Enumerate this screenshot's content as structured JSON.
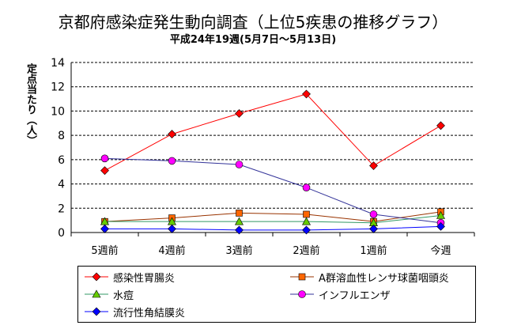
{
  "chart_data": {
    "type": "line",
    "title": "京都府感染症発生動向調査（上位5疾患の推移グラフ）",
    "subtitle": "平成24年19週(5月7日〜5月13日)",
    "xlabel": "",
    "ylabel": "定点当たり（人）",
    "categories": [
      "5週前",
      "4週前",
      "3週前",
      "2週前",
      "1週前",
      "今週"
    ],
    "ylim": [
      0,
      14
    ],
    "yticks": [
      0,
      2,
      4,
      6,
      8,
      10,
      12,
      14
    ],
    "grid": "horizontal dashed",
    "legend_position": "bottom",
    "series": [
      {
        "name": "感染性胃腸炎",
        "color": "#ff0000",
        "marker": "diamond",
        "marker_color": "#ff0000",
        "values": [
          5.1,
          8.1,
          9.8,
          11.4,
          5.5,
          8.8
        ]
      },
      {
        "name": "A群溶血性レンサ球菌咽頭炎",
        "color": "#993300",
        "marker": "square",
        "marker_color": "#ff6600",
        "values": [
          0.9,
          1.2,
          1.6,
          1.5,
          0.9,
          1.7
        ]
      },
      {
        "name": "水痘",
        "color": "#339966",
        "marker": "triangle",
        "marker_color": "#66cc00",
        "values": [
          0.9,
          0.9,
          0.9,
          0.9,
          0.8,
          1.4
        ]
      },
      {
        "name": "インフルエンザ",
        "color": "#333399",
        "marker": "circle",
        "marker_color": "#ff00ff",
        "values": [
          6.1,
          5.9,
          5.6,
          3.7,
          1.5,
          0.8
        ]
      },
      {
        "name": "流行性角結膜炎",
        "color": "#0000ff",
        "marker": "diamond",
        "marker_color": "#0000ff",
        "values": [
          0.3,
          0.3,
          0.2,
          0.2,
          0.3,
          0.5
        ]
      }
    ]
  }
}
